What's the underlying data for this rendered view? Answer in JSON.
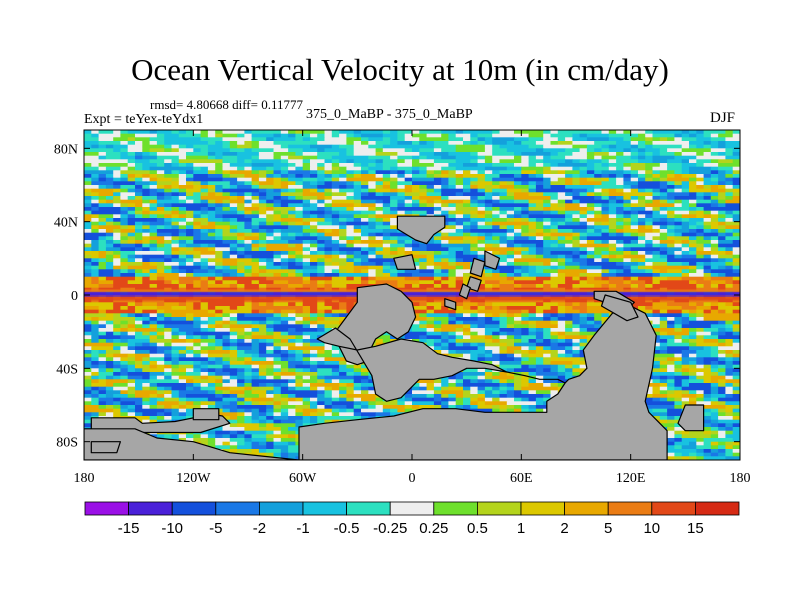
{
  "title": "Ocean Vertical Velocity at 10m (in cm/day)",
  "stats_text": "rmsd= 4.80668  diff= 0.11777",
  "experiment_text": "Expt = teYex-teYdx1",
  "center_label": "375_0_MaBP - 375_0_MaBP",
  "season": "DJF",
  "chart_data": {
    "type": "heatmap",
    "projection": "cylindrical-equidistant",
    "xlim": [
      -180,
      180
    ],
    "ylim": [
      -90,
      90
    ],
    "x_ticks": [
      {
        "value": -180,
        "label": "180"
      },
      {
        "value": -120,
        "label": "120W"
      },
      {
        "value": -60,
        "label": "60W"
      },
      {
        "value": 0,
        "label": "0"
      },
      {
        "value": 60,
        "label": "60E"
      },
      {
        "value": 120,
        "label": "120E"
      },
      {
        "value": 180,
        "label": "180"
      }
    ],
    "y_ticks": [
      {
        "value": 80,
        "label": "80N"
      },
      {
        "value": 40,
        "label": "40N"
      },
      {
        "value": 0,
        "label": "0"
      },
      {
        "value": -40,
        "label": "40S"
      },
      {
        "value": -80,
        "label": "80S"
      }
    ],
    "colorbar": {
      "boundaries": [
        "-15",
        "-10",
        "-5",
        "-2",
        "-1",
        "-0.5",
        "-0.25",
        "0.25",
        "0.5",
        "1",
        "2",
        "5",
        "10",
        "15"
      ],
      "colors": [
        "#9a10e6",
        "#4a20d8",
        "#1450dc",
        "#1a78e6",
        "#14a0dc",
        "#18c2e0",
        "#2ce0c0",
        "#eeeeee",
        "#6ee02c",
        "#b4d41c",
        "#dcc800",
        "#e8a800",
        "#ea7c14",
        "#e24818",
        "#d62a14"
      ]
    },
    "land_color": "#a6a6a6"
  }
}
